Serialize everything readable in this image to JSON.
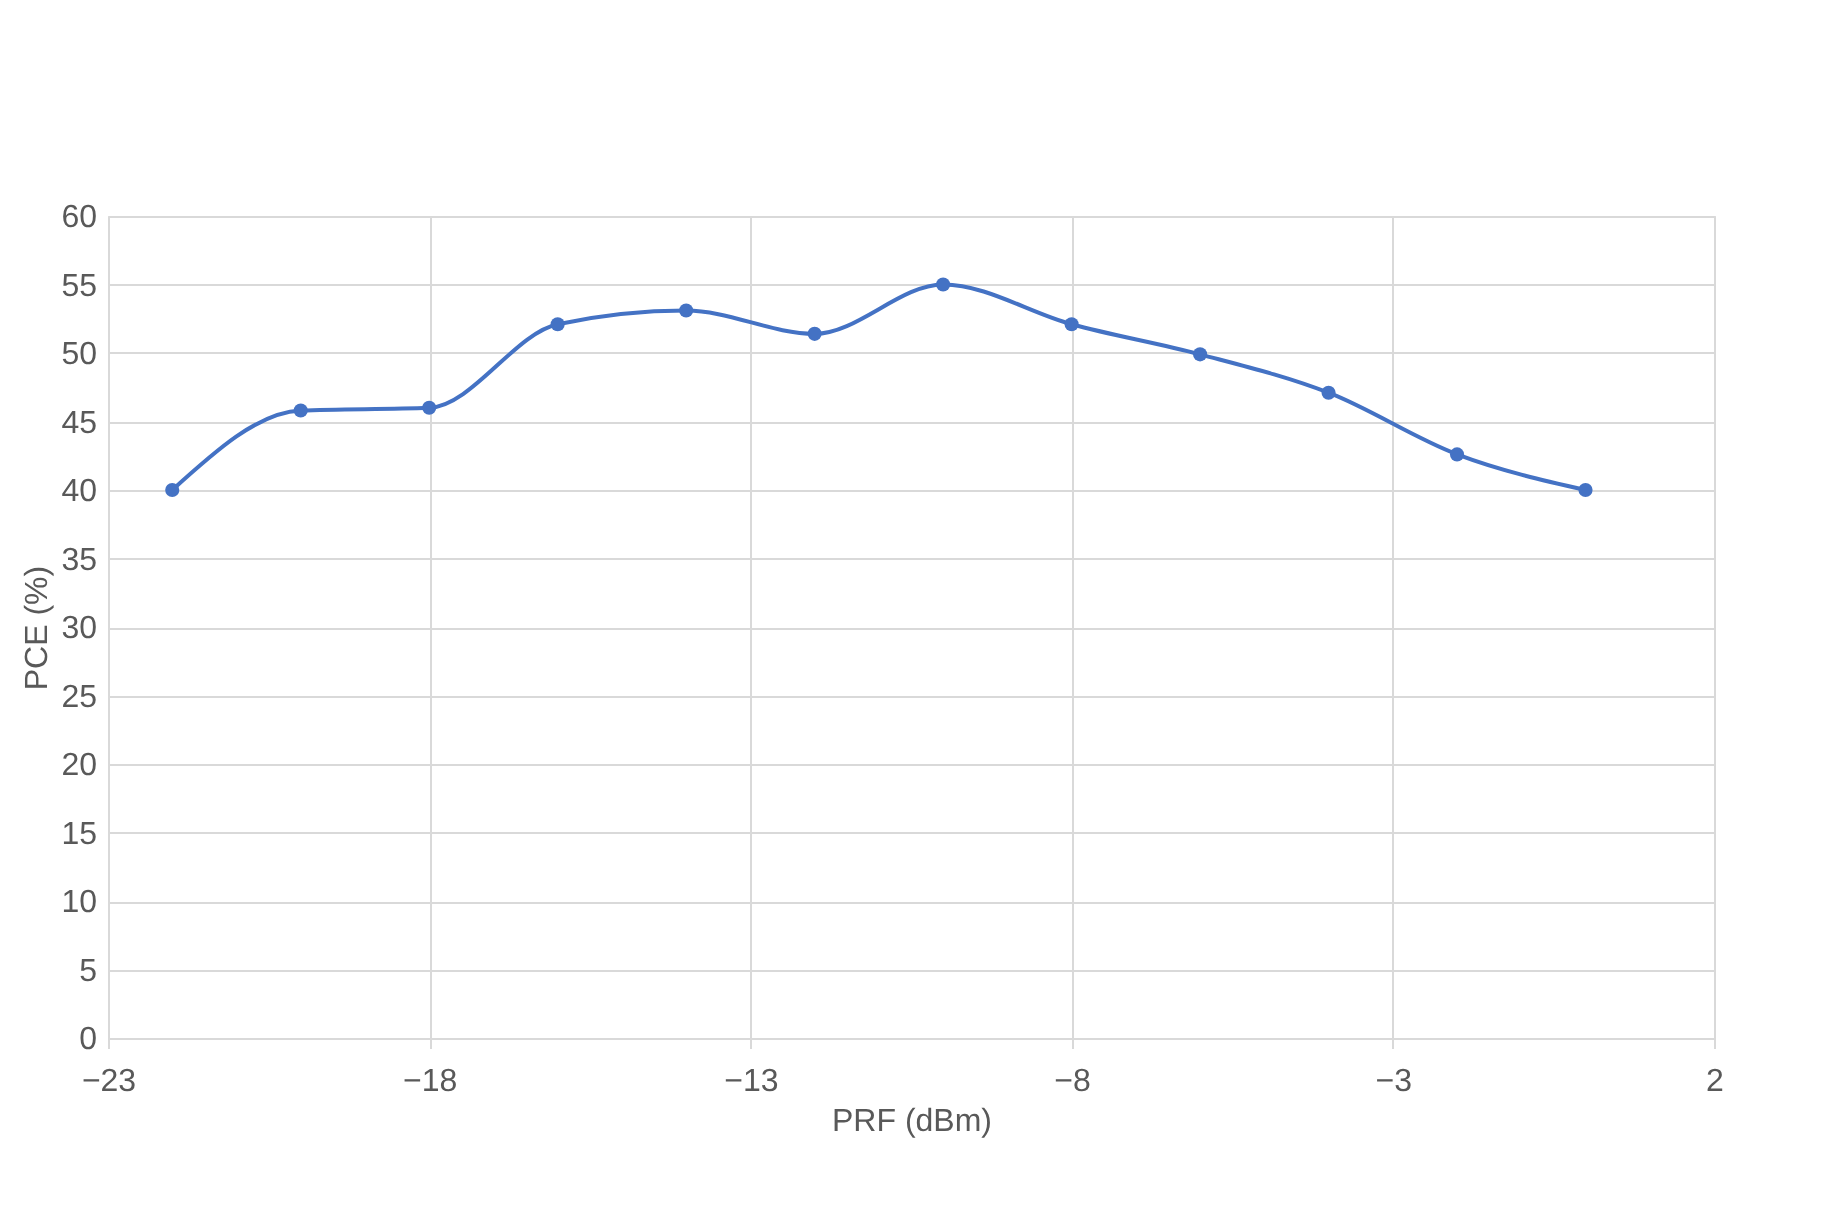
{
  "chart_data": {
    "type": "line",
    "xlabel": "PRF (dBm)",
    "ylabel": "PCE (%)",
    "x": [
      -22,
      -20,
      -18,
      -16,
      -14,
      -12,
      -10,
      -8,
      -6,
      -4,
      -2,
      0
    ],
    "series": [
      {
        "color": "#4472c4",
        "values": [
          40,
          45.8,
          46,
          52.1,
          53.1,
          51.4,
          55,
          52.1,
          49.9,
          47.1,
          42.6,
          40
        ]
      }
    ],
    "xlim": [
      -23,
      2
    ],
    "xticks": [
      -23,
      -18,
      -13,
      -8,
      -3,
      2
    ],
    "ylim": [
      0,
      60
    ],
    "yticks": [
      0,
      5,
      10,
      15,
      20,
      25,
      30,
      35,
      40,
      45,
      50,
      55,
      60
    ],
    "grid": true,
    "marker": "circle",
    "line_style": "solid",
    "legend": false
  }
}
